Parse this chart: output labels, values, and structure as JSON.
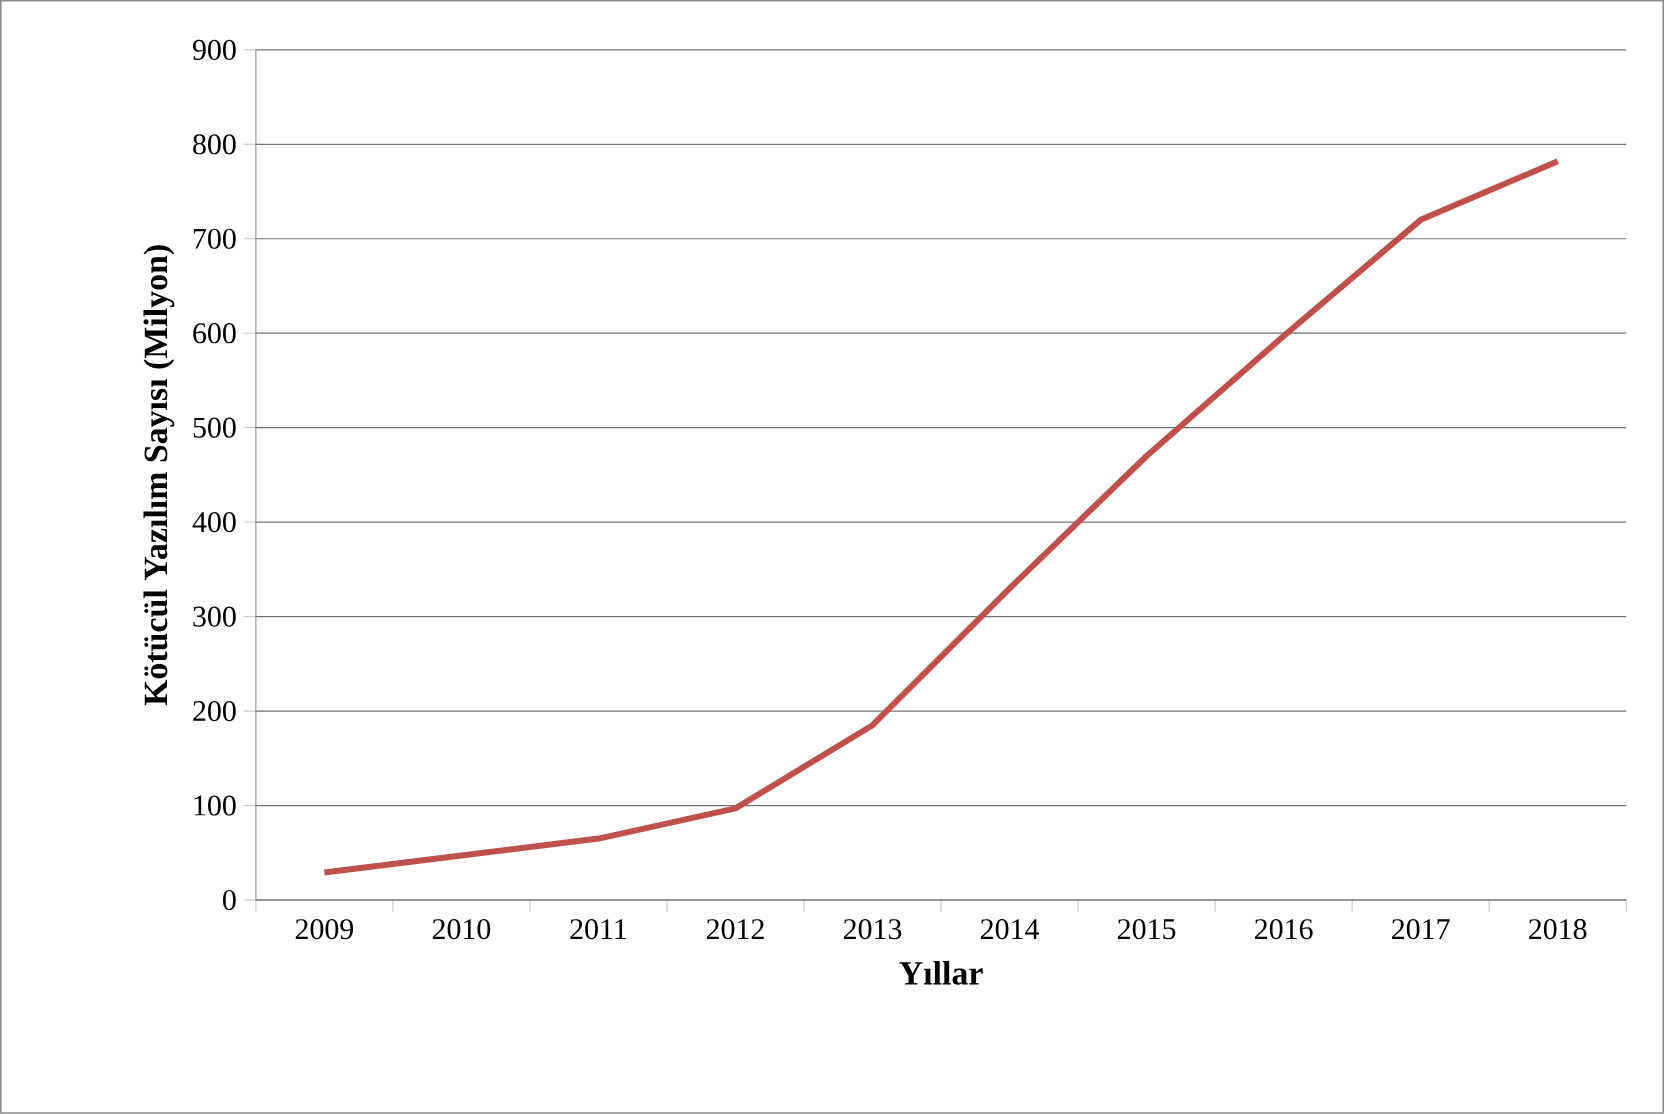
{
  "chart_data": {
    "type": "line",
    "xlabel": "Yıllar",
    "ylabel": "Kötücül Yazılım  Sayısı (Milyon)",
    "categories": [
      "2009",
      "2010",
      "2011",
      "2012",
      "2013",
      "2014",
      "2015",
      "2016",
      "2017",
      "2018"
    ],
    "series": [
      {
        "color": "#c0504d",
        "values": [
          29,
          47,
          65,
          97,
          185,
          330,
          470,
          597,
          720,
          782
        ]
      }
    ],
    "ylim": [
      0,
      900
    ],
    "yticks": [
      0,
      100,
      200,
      300,
      400,
      500,
      600,
      700,
      800,
      900
    ],
    "grid": "y",
    "marker": "none",
    "line_style": "solid"
  }
}
